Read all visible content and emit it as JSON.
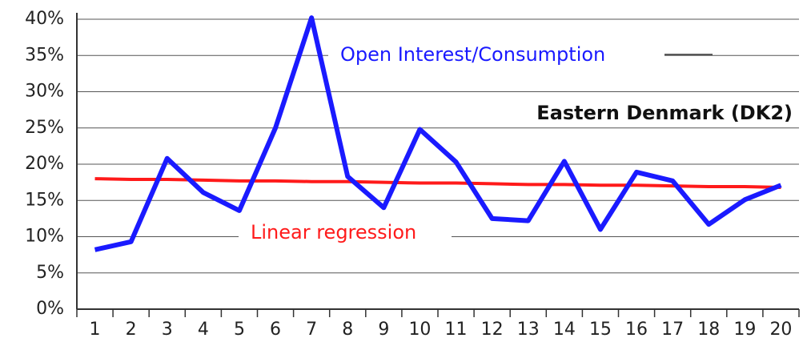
{
  "chart_data": {
    "type": "line",
    "title": "Eastern Denmark (DK2)",
    "categories": [
      "1",
      "2",
      "3",
      "4",
      "5",
      "6",
      "7",
      "8",
      "9",
      "10",
      "11",
      "12",
      "13",
      "14",
      "15",
      "16",
      "17",
      "18",
      "19",
      "20"
    ],
    "series": [
      {
        "name": "Open Interest/Consumption",
        "color": "#1a1aff",
        "values": [
          8.2,
          9.3,
          20.8,
          16.1,
          13.6,
          25,
          40.2,
          18.3,
          14,
          24.8,
          20.3,
          12.5,
          12.2,
          20.4,
          11,
          18.9,
          17.7,
          11.7,
          15.1,
          17.1
        ]
      },
      {
        "name": "Linear regression",
        "color": "#ff1a1a",
        "values": [
          18.0,
          17.9,
          17.9,
          17.8,
          17.7,
          17.7,
          17.6,
          17.6,
          17.5,
          17.4,
          17.4,
          17.3,
          17.2,
          17.2,
          17.1,
          17.1,
          17.0,
          16.9,
          16.9,
          16.8
        ]
      }
    ],
    "ylim": [
      0,
      40
    ],
    "yticks": [
      {
        "value": 0,
        "label": "0%"
      },
      {
        "value": 5,
        "label": "5%"
      },
      {
        "value": 10,
        "label": "10%"
      },
      {
        "value": 15,
        "label": "15%"
      },
      {
        "value": 20,
        "label": "20%"
      },
      {
        "value": 25,
        "label": "25%"
      },
      {
        "value": 30,
        "label": "30%"
      },
      {
        "value": 35,
        "label": "35%"
      },
      {
        "value": 40,
        "label": "40%"
      }
    ],
    "grid": true
  }
}
